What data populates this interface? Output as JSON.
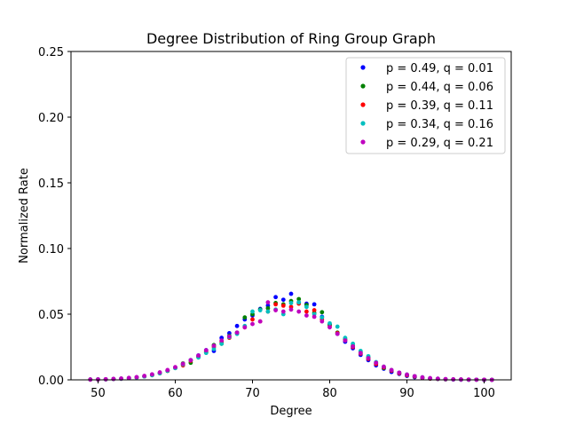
{
  "chart_data": {
    "type": "scatter",
    "title": "Degree Distribution of Ring Group Graph",
    "xlabel": "Degree",
    "ylabel": "Normalized Rate",
    "xlim": [
      46.5,
      103.5
    ],
    "ylim": [
      0,
      0.25
    ],
    "xticks": [
      50,
      60,
      70,
      80,
      90,
      100
    ],
    "yticks": [
      0.0,
      0.05,
      0.1,
      0.15,
      0.2,
      0.25
    ],
    "xtick_labels": [
      "50",
      "60",
      "70",
      "80",
      "90",
      "100"
    ],
    "ytick_labels": [
      "0.00",
      "0.05",
      "0.10",
      "0.15",
      "0.20",
      "0.25"
    ],
    "grid": false,
    "legend_position": "top-right",
    "x": [
      49,
      50,
      51,
      52,
      53,
      54,
      55,
      56,
      57,
      58,
      59,
      60,
      61,
      62,
      63,
      64,
      65,
      66,
      67,
      68,
      69,
      70,
      71,
      72,
      73,
      74,
      75,
      76,
      77,
      78,
      79,
      80,
      81,
      82,
      83,
      84,
      85,
      86,
      87,
      88,
      89,
      90,
      91,
      92,
      93,
      94,
      95,
      96,
      97,
      98,
      99,
      100,
      101
    ],
    "series": [
      {
        "name": "p = 0.49, q = 0.01",
        "color": "#0000ff",
        "values": [
          0.0002,
          0.0003,
          0.0004,
          0.0006,
          0.0009,
          0.0013,
          0.0019,
          0.0027,
          0.0038,
          0.0052,
          0.007,
          0.0092,
          0.0118,
          0.015,
          0.0186,
          0.0226,
          0.022,
          0.032,
          0.0355,
          0.041,
          0.046,
          0.049,
          0.054,
          0.0565,
          0.063,
          0.061,
          0.0655,
          0.059,
          0.058,
          0.0575,
          0.048,
          0.042,
          0.035,
          0.029,
          0.024,
          0.019,
          0.015,
          0.011,
          0.0085,
          0.006,
          0.0045,
          0.003,
          0.002,
          0.0014,
          0.0009,
          0.0006,
          0.0004,
          0.0002,
          0.0001,
          0.0001,
          0.0001,
          0.0,
          0.0
        ]
      },
      {
        "name": "p = 0.44, q = 0.06",
        "color": "#008000",
        "values": [
          0.0002,
          0.0003,
          0.0004,
          0.0006,
          0.0009,
          0.0013,
          0.0018,
          0.0026,
          0.0036,
          0.005,
          0.0068,
          0.009,
          0.0125,
          0.013,
          0.0175,
          0.021,
          0.0265,
          0.0275,
          0.0335,
          0.036,
          0.0475,
          0.05,
          0.0535,
          0.0545,
          0.0585,
          0.0575,
          0.06,
          0.0615,
          0.057,
          0.051,
          0.0515,
          0.042,
          0.036,
          0.031,
          0.026,
          0.021,
          0.017,
          0.0125,
          0.009,
          0.007,
          0.005,
          0.0035,
          0.0024,
          0.0016,
          0.001,
          0.0007,
          0.0004,
          0.0003,
          0.0002,
          0.0001,
          0.0001,
          0.0,
          0.0
        ]
      },
      {
        "name": "p = 0.39, q = 0.11",
        "color": "#ff0000",
        "values": [
          0.0002,
          0.0003,
          0.0004,
          0.0006,
          0.0009,
          0.0013,
          0.0018,
          0.0026,
          0.0036,
          0.005,
          0.007,
          0.0092,
          0.011,
          0.0145,
          0.0175,
          0.0215,
          0.025,
          0.029,
          0.032,
          0.0355,
          0.04,
          0.046,
          0.0445,
          0.052,
          0.0575,
          0.0565,
          0.0555,
          0.058,
          0.052,
          0.053,
          0.046,
          0.0405,
          0.0355,
          0.03,
          0.025,
          0.02,
          0.016,
          0.012,
          0.0095,
          0.007,
          0.005,
          0.0035,
          0.0025,
          0.0016,
          0.001,
          0.0007,
          0.0004,
          0.0003,
          0.0002,
          0.0001,
          0.0001,
          0.0,
          0.0
        ]
      },
      {
        "name": "p = 0.34, q = 0.16",
        "color": "#00bfbf",
        "values": [
          0.0002,
          0.0003,
          0.0004,
          0.0006,
          0.0009,
          0.0013,
          0.0018,
          0.0026,
          0.0036,
          0.005,
          0.007,
          0.009,
          0.0118,
          0.015,
          0.017,
          0.0205,
          0.0235,
          0.0275,
          0.0325,
          0.035,
          0.041,
          0.052,
          0.053,
          0.052,
          0.0535,
          0.05,
          0.0585,
          0.059,
          0.0555,
          0.05,
          0.0475,
          0.043,
          0.0405,
          0.032,
          0.0275,
          0.022,
          0.018,
          0.0135,
          0.01,
          0.0075,
          0.0055,
          0.004,
          0.0028,
          0.0019,
          0.0012,
          0.0008,
          0.0005,
          0.0003,
          0.0002,
          0.0001,
          0.0001,
          0.0,
          0.0
        ]
      },
      {
        "name": "p = 0.29, q = 0.21",
        "color": "#bf00bf",
        "values": [
          0.0002,
          0.0003,
          0.0005,
          0.0007,
          0.001,
          0.0015,
          0.0021,
          0.003,
          0.0042,
          0.0057,
          0.0075,
          0.0097,
          0.0122,
          0.015,
          0.0185,
          0.0225,
          0.026,
          0.03,
          0.033,
          0.036,
          0.04,
          0.0425,
          0.0445,
          0.059,
          0.053,
          0.052,
          0.0535,
          0.052,
          0.049,
          0.048,
          0.0445,
          0.04,
          0.035,
          0.03,
          0.0255,
          0.0205,
          0.0165,
          0.013,
          0.01,
          0.0075,
          0.0055,
          0.004,
          0.0028,
          0.0019,
          0.0013,
          0.0009,
          0.0006,
          0.0004,
          0.0003,
          0.0002,
          0.0001,
          0.0001,
          0.0
        ]
      }
    ]
  }
}
